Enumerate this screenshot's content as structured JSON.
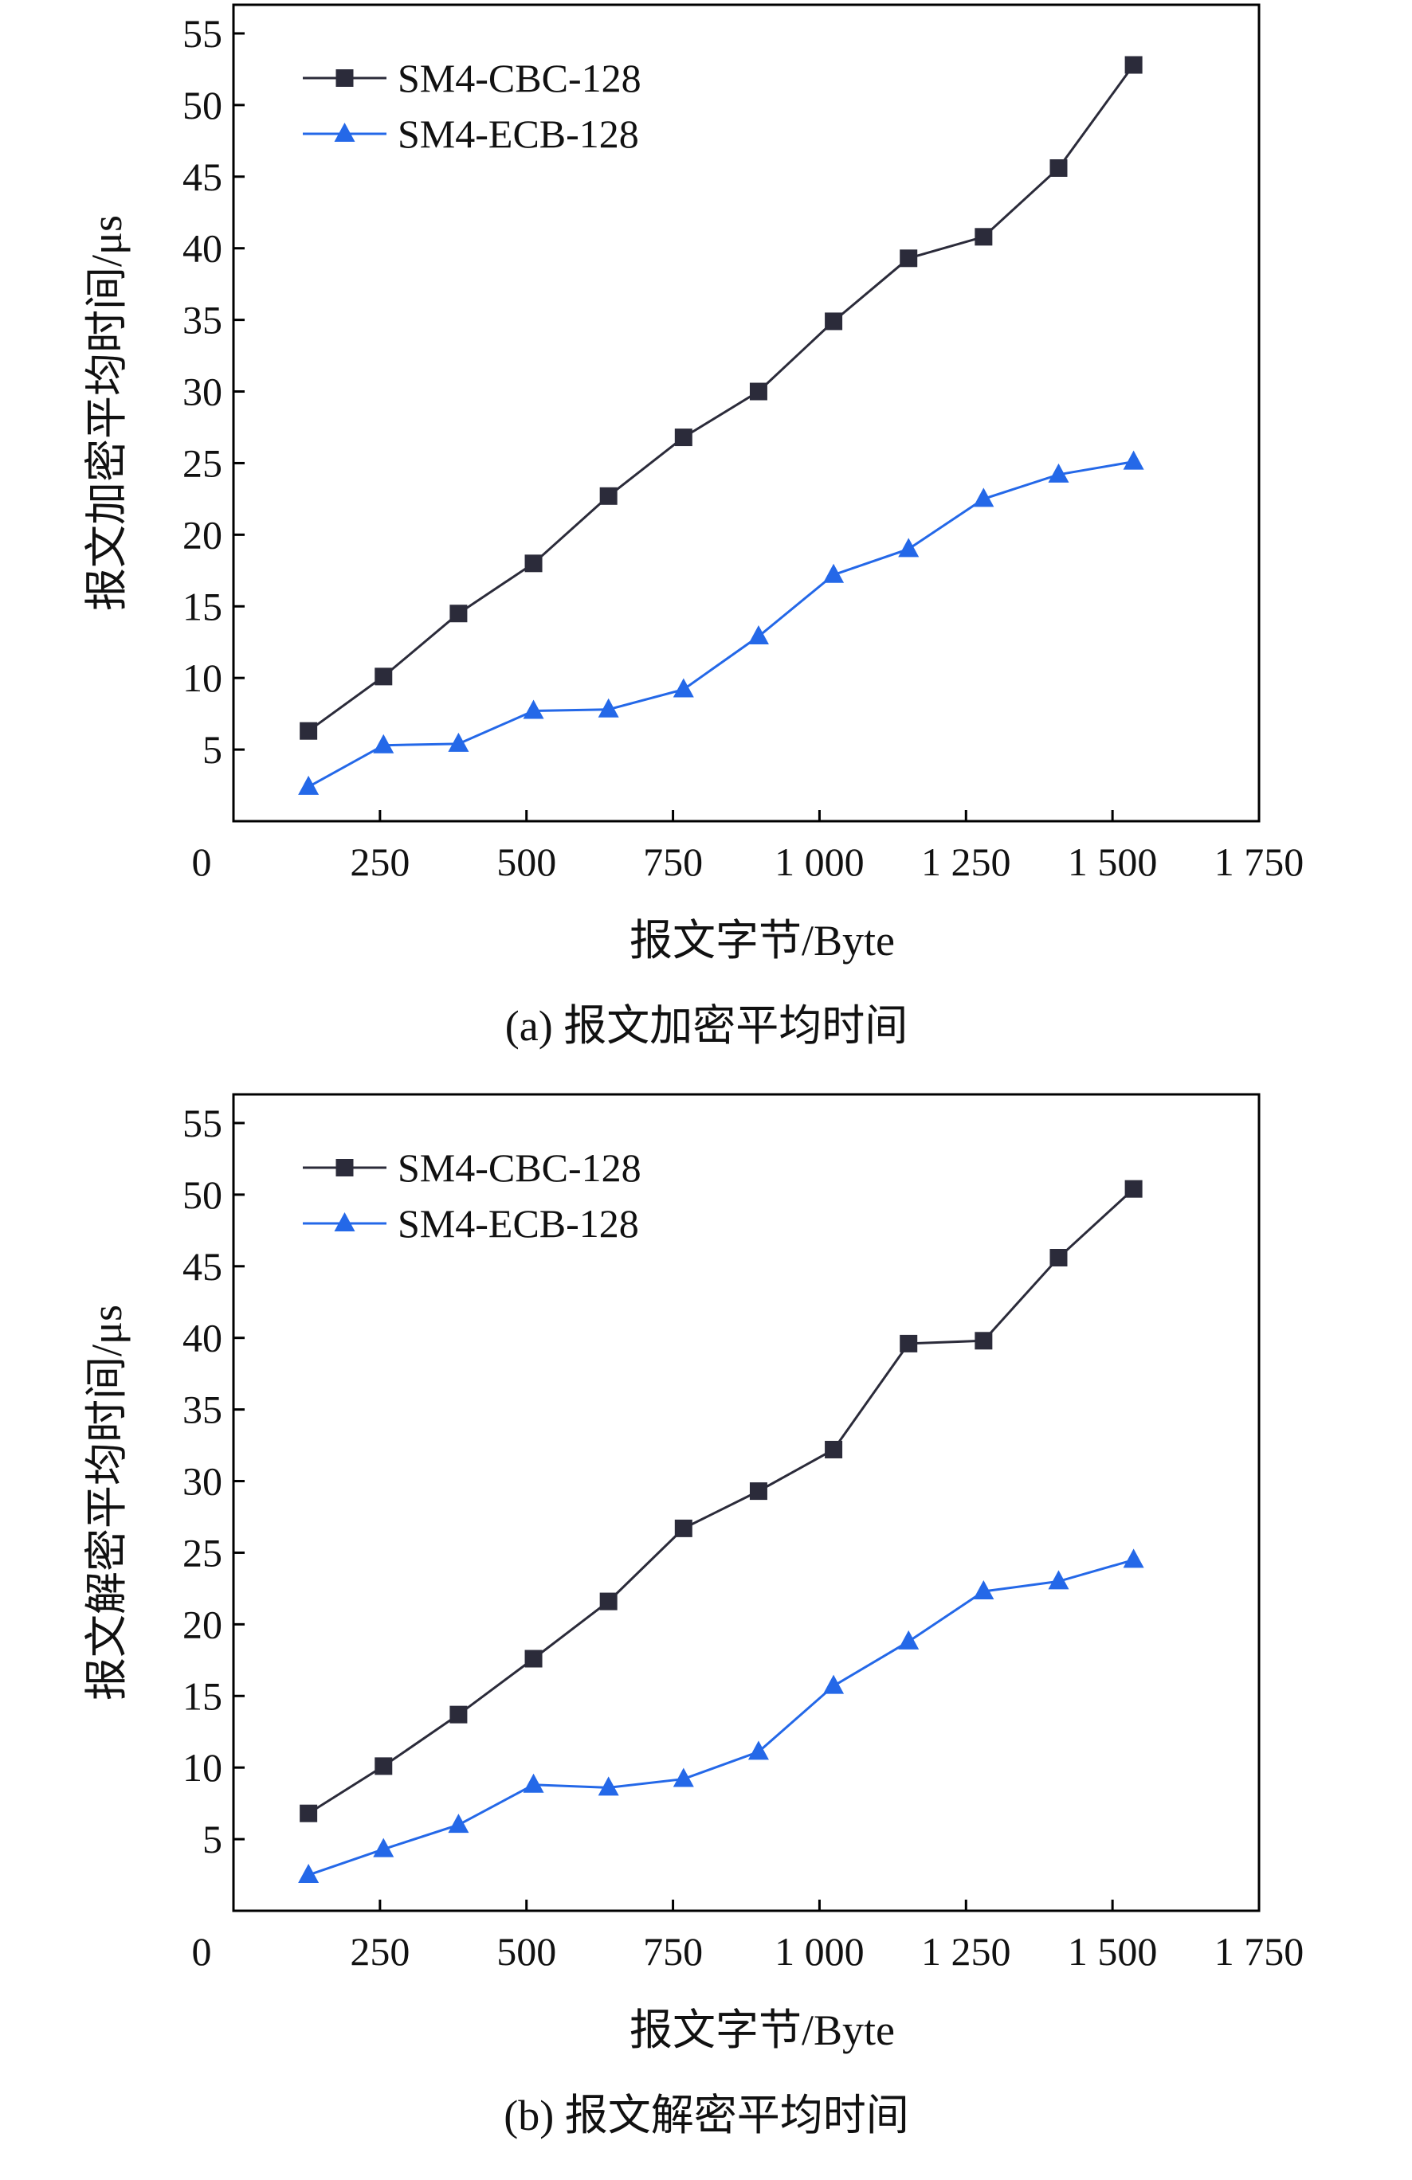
{
  "chart_data": [
    {
      "type": "line",
      "caption": "(a) 报文加密平均时间",
      "xlabel": "报文字节/Byte",
      "ylabel": "报文加密平均时间/μs",
      "xlim": [
        0,
        1750
      ],
      "ylim": [
        0,
        57
      ],
      "x_tick_labels": [
        "0",
        "250",
        "500",
        "750",
        "1 000",
        "1 250",
        "1 500",
        "1 750"
      ],
      "x_ticks": [
        0,
        250,
        500,
        750,
        1000,
        1250,
        1500,
        1750
      ],
      "y_ticks": [
        5,
        10,
        15,
        20,
        25,
        30,
        35,
        40,
        45,
        50,
        55
      ],
      "legend_position": "top-left",
      "x": [
        128,
        256,
        384,
        512,
        640,
        768,
        896,
        1024,
        1152,
        1280,
        1408,
        1536
      ],
      "series": [
        {
          "name": "SM4-CBC-128",
          "marker": "square",
          "color": "#2b2b3a",
          "values": [
            6.3,
            10.1,
            14.5,
            18.0,
            22.7,
            26.8,
            30.0,
            34.9,
            39.3,
            40.8,
            45.6,
            52.8
          ]
        },
        {
          "name": "SM4-ECB-128",
          "marker": "triangle",
          "color": "#2468e8",
          "values": [
            2.4,
            5.3,
            5.4,
            7.7,
            7.8,
            9.2,
            12.9,
            17.2,
            19.0,
            22.5,
            24.2,
            25.1
          ]
        }
      ]
    },
    {
      "type": "line",
      "caption": "(b) 报文解密平均时间",
      "xlabel": "报文字节/Byte",
      "ylabel": "报文解密平均时间/μs",
      "xlim": [
        0,
        1750
      ],
      "ylim": [
        0,
        57
      ],
      "x_tick_labels": [
        "0",
        "250",
        "500",
        "750",
        "1 000",
        "1 250",
        "1 500",
        "1 750"
      ],
      "x_ticks": [
        0,
        250,
        500,
        750,
        1000,
        1250,
        1500,
        1750
      ],
      "y_ticks": [
        5,
        10,
        15,
        20,
        25,
        30,
        35,
        40,
        45,
        50,
        55
      ],
      "legend_position": "top-left",
      "x": [
        128,
        256,
        384,
        512,
        640,
        768,
        896,
        1024,
        1152,
        1280,
        1408,
        1536
      ],
      "series": [
        {
          "name": "SM4-CBC-128",
          "marker": "square",
          "color": "#2b2b3a",
          "values": [
            6.8,
            10.1,
            13.7,
            17.6,
            21.6,
            26.7,
            29.3,
            32.2,
            39.6,
            39.8,
            45.6,
            50.4
          ]
        },
        {
          "name": "SM4-ECB-128",
          "marker": "triangle",
          "color": "#2468e8",
          "values": [
            2.5,
            4.3,
            6.0,
            8.8,
            8.6,
            9.2,
            11.1,
            15.7,
            18.8,
            22.3,
            23.0,
            24.5
          ]
        }
      ]
    }
  ]
}
